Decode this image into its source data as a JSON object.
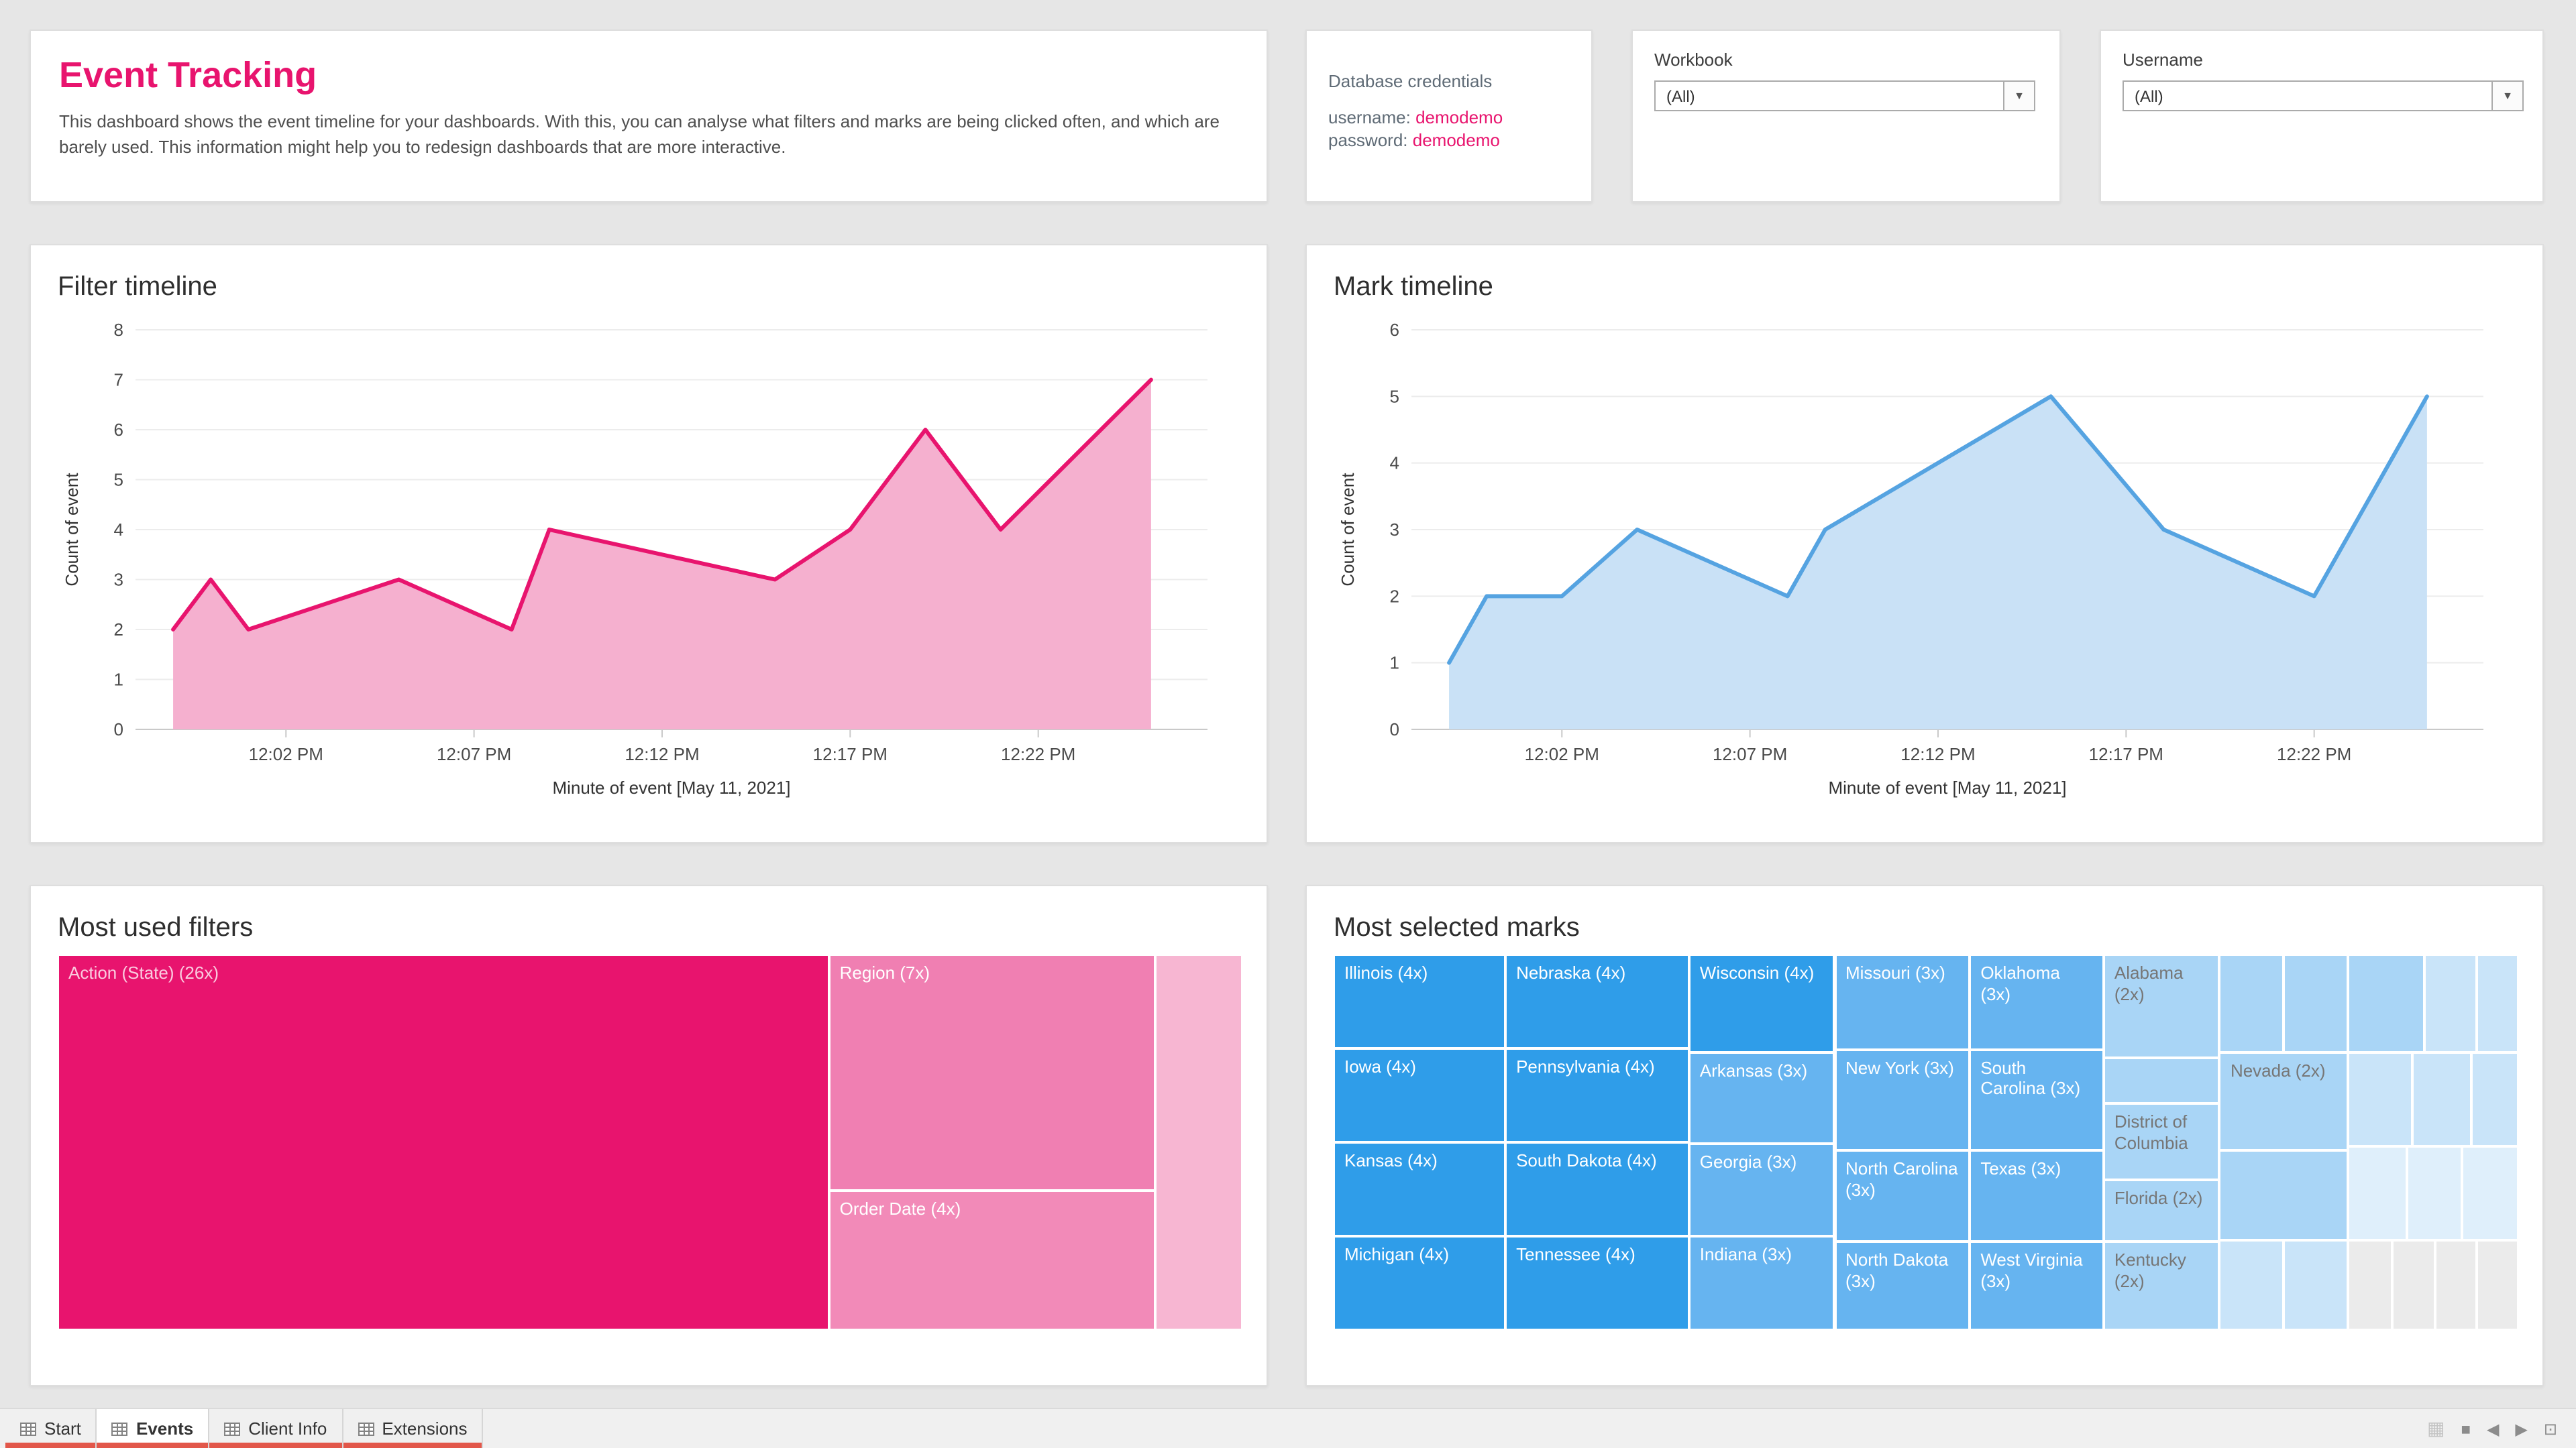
{
  "colors": {
    "page_bg": "#e6e6e6",
    "card_bg": "#ffffff",
    "accent_pink": "#e8146e",
    "accent_blue": "#2f9de9",
    "pink_area": "#f5b0cf",
    "blue_area": "#c9e1f6",
    "tab_marker_red": "#e2574a"
  },
  "header": {
    "title": "Event Tracking",
    "description": "This dashboard shows the event timeline for your dashboards. With this, you can analyse what filters and marks are being clicked often, and which are barely used. This information might help you to redesign dashboards that are more interactive."
  },
  "credentials": {
    "heading": "Database credentials",
    "username_label": "username:",
    "username_value": "demodemo",
    "password_label": "password:",
    "password_value": "demodemo"
  },
  "filters": {
    "workbook": {
      "label": "Workbook",
      "value": "(All)"
    },
    "username": {
      "label": "Username",
      "value": "(All)"
    }
  },
  "chart_data": [
    {
      "type": "area",
      "title": "Filter timeline",
      "xlabel": "Minute of event [May 11, 2021]",
      "ylabel": "Count of event",
      "ylim": [
        0,
        8
      ],
      "yticks": [
        0,
        1,
        2,
        3,
        4,
        5,
        6,
        7,
        8
      ],
      "xlim": [
        -2,
        26.5
      ],
      "xticks": [
        {
          "t": 2,
          "label": "12:02 PM"
        },
        {
          "t": 7,
          "label": "12:07 PM"
        },
        {
          "t": 12,
          "label": "12:12 PM"
        },
        {
          "t": 17,
          "label": "12:17 PM"
        },
        {
          "t": 22,
          "label": "12:22 PM"
        }
      ],
      "points": [
        [
          -1,
          2
        ],
        [
          0,
          3
        ],
        [
          1,
          2
        ],
        [
          5,
          3
        ],
        [
          8,
          2
        ],
        [
          9,
          4
        ],
        [
          15,
          3
        ],
        [
          17,
          4
        ],
        [
          19,
          6
        ],
        [
          21,
          4
        ],
        [
          25,
          7
        ]
      ],
      "line_color": "#e8146e",
      "fill_color": "#f5b0cf",
      "grid": true,
      "legend": "none"
    },
    {
      "type": "area",
      "title": "Mark timeline",
      "xlabel": "Minute of event [May 11, 2021]",
      "ylabel": "Count of event",
      "ylim": [
        0,
        6
      ],
      "yticks": [
        0,
        1,
        2,
        3,
        4,
        5,
        6
      ],
      "xlim": [
        -2,
        26.5
      ],
      "xticks": [
        {
          "t": 2,
          "label": "12:02 PM"
        },
        {
          "t": 7,
          "label": "12:07 PM"
        },
        {
          "t": 12,
          "label": "12:12 PM"
        },
        {
          "t": 17,
          "label": "12:17 PM"
        },
        {
          "t": 22,
          "label": "12:22 PM"
        }
      ],
      "points": [
        [
          -1,
          1
        ],
        [
          0,
          2
        ],
        [
          2,
          2
        ],
        [
          4,
          3
        ],
        [
          8,
          2
        ],
        [
          9,
          3
        ],
        [
          15,
          5
        ],
        [
          18,
          3
        ],
        [
          22,
          2
        ],
        [
          25,
          5
        ]
      ],
      "line_color": "#55a3e1",
      "fill_color": "#c9e1f6",
      "grid": true,
      "legend": "none"
    },
    {
      "type": "treemap",
      "title": "Most used filters",
      "cells": [
        {
          "label": "Action (State) (26x)",
          "value": 26,
          "x": 0,
          "y": 0,
          "w": 65.1,
          "h": 100,
          "color": "#e8146e",
          "tc": "rgba(255,255,255,0.78)"
        },
        {
          "label": "Region (7x)",
          "value": 7,
          "x": 65.1,
          "y": 0,
          "w": 27.5,
          "h": 62.8,
          "color": "#f07fb2",
          "tc": "#ffffff"
        },
        {
          "label": "Order Date (4x)",
          "value": 4,
          "x": 65.1,
          "y": 62.8,
          "w": 27.5,
          "h": 37.2,
          "color": "#f28ab8",
          "tc": "#ffffff"
        },
        {
          "label": "",
          "value": null,
          "x": 92.6,
          "y": 0,
          "w": 7.4,
          "h": 100,
          "color": "#f7b6d2"
        }
      ]
    },
    {
      "type": "treemap",
      "title": "Most selected marks",
      "cells": [
        {
          "label": "Illinois (4x)",
          "value": 4,
          "x": 0,
          "y": 0,
          "w": 14.5,
          "h": 25,
          "color": "#2f9de9",
          "tc": "#ffffff"
        },
        {
          "label": "Iowa (4x)",
          "value": 4,
          "x": 0,
          "y": 25,
          "w": 14.5,
          "h": 25,
          "color": "#2f9de9",
          "tc": "#ffffff"
        },
        {
          "label": "Kansas (4x)",
          "value": 4,
          "x": 0,
          "y": 50,
          "w": 14.5,
          "h": 25,
          "color": "#2f9de9",
          "tc": "#ffffff"
        },
        {
          "label": "Michigan (4x)",
          "value": 4,
          "x": 0,
          "y": 75,
          "w": 14.5,
          "h": 25,
          "color": "#2f9de9",
          "tc": "#ffffff"
        },
        {
          "label": "Nebraska (4x)",
          "value": 4,
          "x": 14.5,
          "y": 0,
          "w": 15.5,
          "h": 25,
          "color": "#2f9de9",
          "tc": "#ffffff"
        },
        {
          "label": "Pennsylvania (4x)",
          "value": 4,
          "x": 14.5,
          "y": 25,
          "w": 15.5,
          "h": 25,
          "color": "#2f9de9",
          "tc": "#ffffff"
        },
        {
          "label": "South Dakota (4x)",
          "value": 4,
          "x": 14.5,
          "y": 50,
          "w": 15.5,
          "h": 25,
          "color": "#2f9de9",
          "tc": "#ffffff"
        },
        {
          "label": "Tennessee (4x)",
          "value": 4,
          "x": 14.5,
          "y": 75,
          "w": 15.5,
          "h": 25,
          "color": "#2f9de9",
          "tc": "#ffffff"
        },
        {
          "label": "Wisconsin (4x)",
          "value": 4,
          "x": 30,
          "y": 0,
          "w": 12.3,
          "h": 26,
          "color": "#2f9de9",
          "tc": "#ffffff"
        },
        {
          "label": "Arkansas (3x)",
          "value": 3,
          "x": 30,
          "y": 26,
          "w": 12.3,
          "h": 24.5,
          "color": "#66b4f0",
          "tc": "#ffffff"
        },
        {
          "label": "Georgia (3x)",
          "value": 3,
          "x": 30,
          "y": 50.5,
          "w": 12.3,
          "h": 24.5,
          "color": "#66b4f0",
          "tc": "#ffffff"
        },
        {
          "label": "Indiana (3x)",
          "value": 3,
          "x": 30,
          "y": 75,
          "w": 12.3,
          "h": 25,
          "color": "#66b4f0",
          "tc": "#ffffff"
        },
        {
          "label": "Missouri (3x)",
          "value": 3,
          "x": 42.3,
          "y": 0,
          "w": 11.4,
          "h": 25.2,
          "color": "#66b4f0",
          "tc": "#ffffff"
        },
        {
          "label": "New York (3x)",
          "value": 3,
          "x": 42.3,
          "y": 25.2,
          "w": 11.4,
          "h": 27,
          "color": "#66b4f0",
          "tc": "#ffffff"
        },
        {
          "label": "North Carolina (3x)",
          "value": 3,
          "x": 42.3,
          "y": 52.2,
          "w": 11.4,
          "h": 24.3,
          "color": "#66b4f0",
          "tc": "#ffffff"
        },
        {
          "label": "North Dakota (3x)",
          "value": 3,
          "x": 42.3,
          "y": 76.5,
          "w": 11.4,
          "h": 23.5,
          "color": "#66b4f0",
          "tc": "#ffffff"
        },
        {
          "label": "Oklahoma (3x)",
          "value": 3,
          "x": 53.7,
          "y": 0,
          "w": 11.3,
          "h": 25.2,
          "color": "#66b4f0",
          "tc": "#ffffff"
        },
        {
          "label": "South Carolina (3x)",
          "value": 3,
          "x": 53.7,
          "y": 25.2,
          "w": 11.3,
          "h": 27,
          "color": "#66b4f0",
          "tc": "#ffffff"
        },
        {
          "label": "Texas (3x)",
          "value": 3,
          "x": 53.7,
          "y": 52.2,
          "w": 11.3,
          "h": 24.3,
          "color": "#66b4f0",
          "tc": "#ffffff"
        },
        {
          "label": "West Virginia (3x)",
          "value": 3,
          "x": 53.7,
          "y": 76.5,
          "w": 11.3,
          "h": 23.5,
          "color": "#66b4f0",
          "tc": "#ffffff"
        },
        {
          "label": "Alabama (2x)",
          "value": 2,
          "x": 65,
          "y": 0,
          "w": 9.8,
          "h": 27.4,
          "color": "#a9d5f6",
          "tc": "#767676"
        },
        {
          "label": "",
          "value": null,
          "x": 65,
          "y": 27.4,
          "w": 9.8,
          "h": 12.2,
          "color": "#a9d5f6"
        },
        {
          "label": "District of Columbia",
          "value": 2,
          "x": 65,
          "y": 39.6,
          "w": 9.8,
          "h": 20.4,
          "color": "#a9d5f6",
          "tc": "#767676"
        },
        {
          "label": "Florida (2x)",
          "value": 2,
          "x": 65,
          "y": 60,
          "w": 9.8,
          "h": 16.5,
          "color": "#a9d5f6",
          "tc": "#767676"
        },
        {
          "label": "Kentucky (2x)",
          "value": 2,
          "x": 65,
          "y": 76.5,
          "w": 9.8,
          "h": 23.5,
          "color": "#a9d5f6",
          "tc": "#767676"
        },
        {
          "label": "",
          "value": null,
          "x": 74.8,
          "y": 0,
          "w": 5.4,
          "h": 26,
          "color": "#a9d5f6"
        },
        {
          "label": "",
          "value": null,
          "x": 80.2,
          "y": 0,
          "w": 5.4,
          "h": 26,
          "color": "#a9d5f6"
        },
        {
          "label": "Nevada (2x)",
          "value": 2,
          "x": 74.8,
          "y": 26,
          "w": 10.8,
          "h": 26,
          "color": "#a9d5f6",
          "tc": "#767676"
        },
        {
          "label": "",
          "value": null,
          "x": 74.8,
          "y": 52,
          "w": 10.8,
          "h": 24,
          "color": "#a9d5f6"
        },
        {
          "label": "",
          "value": null,
          "x": 74.8,
          "y": 76,
          "w": 5.4,
          "h": 24,
          "color": "#c9e4f9"
        },
        {
          "label": "",
          "value": null,
          "x": 80.2,
          "y": 76,
          "w": 5.4,
          "h": 24,
          "color": "#c9e4f9"
        },
        {
          "label": "",
          "value": null,
          "x": 85.6,
          "y": 0,
          "w": 6.5,
          "h": 26,
          "color": "#a9d5f6"
        },
        {
          "label": "",
          "value": null,
          "x": 92.1,
          "y": 0,
          "w": 4.4,
          "h": 26,
          "color": "#c9e4f9"
        },
        {
          "label": "",
          "value": null,
          "x": 96.5,
          "y": 0,
          "w": 3.5,
          "h": 26,
          "color": "#c9e4f9"
        },
        {
          "label": "",
          "value": null,
          "x": 85.6,
          "y": 26,
          "w": 5.4,
          "h": 25,
          "color": "#c9e4f9"
        },
        {
          "label": "",
          "value": null,
          "x": 91,
          "y": 26,
          "w": 5,
          "h": 25,
          "color": "#c9e4f9"
        },
        {
          "label": "",
          "value": null,
          "x": 96,
          "y": 26,
          "w": 4,
          "h": 25,
          "color": "#c9e4f9"
        },
        {
          "label": "",
          "value": null,
          "x": 85.6,
          "y": 51,
          "w": 5,
          "h": 25,
          "color": "#dfeffb"
        },
        {
          "label": "",
          "value": null,
          "x": 90.6,
          "y": 51,
          "w": 4.7,
          "h": 25,
          "color": "#dfeffb"
        },
        {
          "label": "",
          "value": null,
          "x": 95.3,
          "y": 51,
          "w": 4.7,
          "h": 25,
          "color": "#dfeffb"
        },
        {
          "label": "",
          "value": null,
          "x": 85.6,
          "y": 76,
          "w": 3.8,
          "h": 24,
          "color": "#ebebeb"
        },
        {
          "label": "",
          "value": null,
          "x": 89.4,
          "y": 76,
          "w": 3.6,
          "h": 24,
          "color": "#ebebeb"
        },
        {
          "label": "",
          "value": null,
          "x": 93,
          "y": 76,
          "w": 3.5,
          "h": 24,
          "color": "#ebebeb"
        },
        {
          "label": "",
          "value": null,
          "x": 96.5,
          "y": 76,
          "w": 3.5,
          "h": 24,
          "color": "#ebebeb"
        }
      ]
    }
  ],
  "tabs": [
    {
      "label": "Start",
      "active": false
    },
    {
      "label": "Events",
      "active": true
    },
    {
      "label": "Client Info",
      "active": false
    },
    {
      "label": "Extensions",
      "active": false
    }
  ],
  "statusbar": {
    "icons": [
      {
        "name": "thumbnail-grid-icon",
        "glyph": "▦"
      },
      {
        "name": "stop-icon",
        "glyph": "■"
      },
      {
        "name": "prev-sheet-icon",
        "glyph": "◀"
      },
      {
        "name": "next-sheet-icon",
        "glyph": "▶"
      },
      {
        "name": "presentation-mode-icon",
        "glyph": "⊡"
      }
    ]
  }
}
